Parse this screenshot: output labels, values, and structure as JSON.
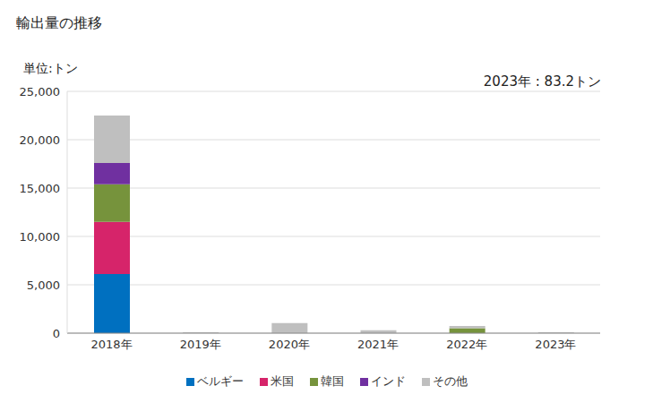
{
  "chart_data": {
    "type": "bar",
    "title": "輸出量の推移",
    "subtitle": "単位:トン",
    "annotations": [
      "2023年 : 83.2トン"
    ],
    "categories": [
      "2018年",
      "2019年",
      "2020年",
      "2021年",
      "2022年",
      "2023年"
    ],
    "series": [
      {
        "name": "ベルギー",
        "color": "#0070c0",
        "values": [
          6100,
          0,
          0,
          0,
          0,
          0
        ]
      },
      {
        "name": "米国",
        "color": "#d6246a",
        "values": [
          5400,
          0,
          0,
          0,
          0,
          0
        ]
      },
      {
        "name": "韓国",
        "color": "#76933c",
        "values": [
          3900,
          0,
          0,
          0,
          500,
          0
        ]
      },
      {
        "name": "インド",
        "color": "#7030a0",
        "values": [
          2200,
          0,
          0,
          0,
          0,
          0
        ]
      },
      {
        "name": "その他",
        "color": "#bfbfbf",
        "values": [
          4900,
          100,
          1050,
          300,
          250,
          83.2
        ]
      }
    ],
    "ylim": [
      0,
      25000
    ],
    "yticks": [
      0,
      {
        "value": 5000,
        "label": "5,000"
      },
      {
        "value": 10000,
        "label": "10,000"
      },
      {
        "value": 15000,
        "label": "15,000"
      },
      {
        "value": 20000,
        "label": "20,000"
      },
      {
        "value": 25000,
        "label": "25,000"
      }
    ],
    "stacked": true,
    "grid": true,
    "legend": "bottom"
  }
}
